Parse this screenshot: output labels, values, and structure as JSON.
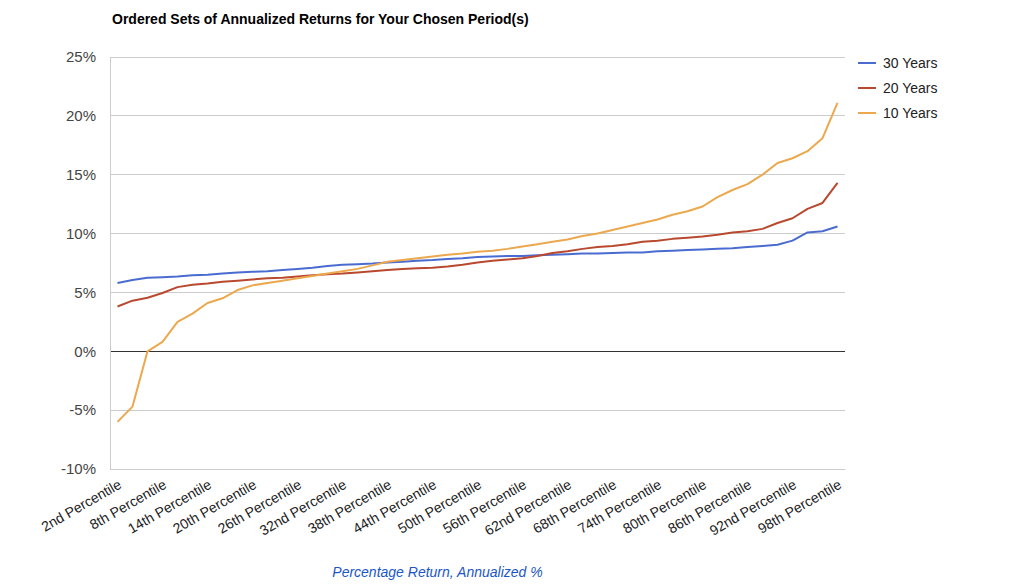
{
  "chart_data": {
    "type": "line",
    "title": "Ordered Sets of Annualized Returns for Your Chosen Period(s)",
    "x_label": "Percentage Return, Annualized %",
    "categories": [
      "2nd Percentile",
      null,
      null,
      "8th Percentile",
      null,
      null,
      "14th Percentile",
      null,
      null,
      "20th Percentile",
      null,
      null,
      "26th Percentile",
      null,
      null,
      "32nd Percentile",
      null,
      null,
      "38th Percentile",
      null,
      null,
      "44th Percentile",
      null,
      null,
      "50th Percentile",
      null,
      null,
      "56th Percentile",
      null,
      null,
      "62nd Percentile",
      null,
      null,
      "68th Percentile",
      null,
      null,
      "74th Percentile",
      null,
      null,
      "80th Percentile",
      null,
      null,
      "86th Percentile",
      null,
      null,
      "92nd Percentile",
      null,
      null,
      "98th Percentile"
    ],
    "series": [
      {
        "name": "30 Years",
        "color": "#4a6cd0",
        "values": [
          5.8,
          6.05,
          6.25,
          6.3,
          6.35,
          6.45,
          6.5,
          6.6,
          6.7,
          6.75,
          6.8,
          6.9,
          7.0,
          7.1,
          7.25,
          7.35,
          7.4,
          7.45,
          7.55,
          7.6,
          7.7,
          7.75,
          7.85,
          7.9,
          8.0,
          8.05,
          8.1,
          8.1,
          8.15,
          8.2,
          8.25,
          8.3,
          8.3,
          8.35,
          8.4,
          8.4,
          8.5,
          8.55,
          8.6,
          8.65,
          8.7,
          8.75,
          8.85,
          8.95,
          9.05,
          9.4,
          10.1,
          10.2,
          10.6
        ]
      },
      {
        "name": "20 Years",
        "color": "#b8492f",
        "values": [
          3.8,
          4.3,
          4.55,
          4.95,
          5.45,
          5.65,
          5.75,
          5.9,
          6.0,
          6.1,
          6.2,
          6.25,
          6.35,
          6.45,
          6.55,
          6.6,
          6.7,
          6.8,
          6.9,
          7.0,
          7.05,
          7.1,
          7.2,
          7.35,
          7.55,
          7.7,
          7.8,
          7.9,
          8.1,
          8.35,
          8.5,
          8.7,
          8.85,
          8.95,
          9.1,
          9.3,
          9.4,
          9.55,
          9.65,
          9.75,
          9.9,
          10.1,
          10.2,
          10.4,
          10.9,
          11.3,
          12.1,
          12.6,
          14.3
        ]
      },
      {
        "name": "10 Years",
        "color": "#eba84e",
        "values": [
          -6.0,
          -4.7,
          0.0,
          0.8,
          2.5,
          3.2,
          4.1,
          4.5,
          5.2,
          5.6,
          5.8,
          6.0,
          6.2,
          6.4,
          6.6,
          6.8,
          7.0,
          7.3,
          7.6,
          7.75,
          7.9,
          8.05,
          8.2,
          8.3,
          8.45,
          8.55,
          8.7,
          8.9,
          9.1,
          9.3,
          9.5,
          9.8,
          10.0,
          10.3,
          10.6,
          10.9,
          11.2,
          11.6,
          11.9,
          12.3,
          13.1,
          13.7,
          14.2,
          15.0,
          16.0,
          16.4,
          17.0,
          18.1,
          21.1
        ]
      }
    ],
    "ylim": [
      -10,
      25
    ],
    "yticks": [
      {
        "value": -10,
        "label": "-10%"
      },
      {
        "value": -5,
        "label": "-5%"
      },
      {
        "value": 0,
        "label": "0%"
      },
      {
        "value": 5,
        "label": "5%"
      },
      {
        "value": 10,
        "label": "10%"
      },
      {
        "value": 15,
        "label": "15%"
      },
      {
        "value": 20,
        "label": "20%"
      },
      {
        "value": 25,
        "label": "25%"
      }
    ],
    "grid": true,
    "legend": "top-right"
  }
}
